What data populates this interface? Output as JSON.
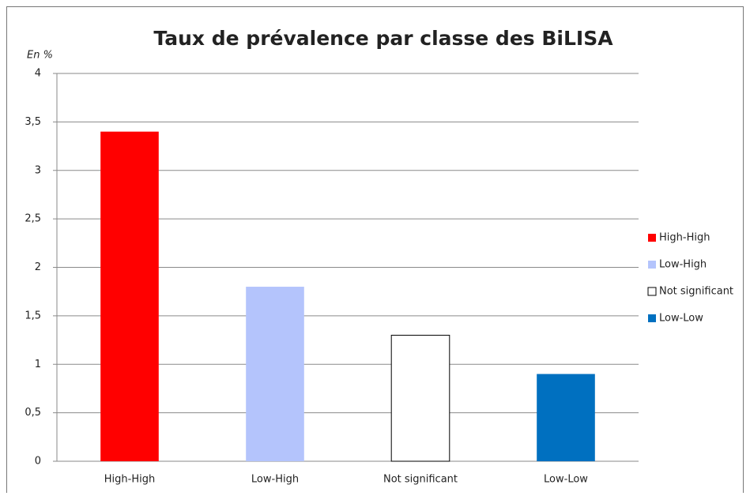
{
  "chart_data": {
    "type": "bar",
    "title": "Taux de prévalence par classe des BiLISA",
    "y_label": "En %",
    "categories": [
      "High-High",
      "Low-High",
      "Not significant",
      "Low-Low"
    ],
    "values": [
      3.4,
      1.8,
      1.3,
      0.9
    ],
    "colors": [
      "#ff0000",
      "#b4c4fc",
      "#ffffff",
      "#0070c0"
    ],
    "ylim": [
      0,
      4
    ],
    "yticks": [
      0,
      {
        "value": 0.5,
        "label": "0,5"
      },
      1,
      {
        "value": 1.5,
        "label": "1,5"
      },
      2,
      {
        "value": 2.5,
        "label": "2,5"
      },
      3,
      {
        "value": 3.5,
        "label": "3,5"
      },
      4
    ],
    "grid": true,
    "legend": "right"
  }
}
